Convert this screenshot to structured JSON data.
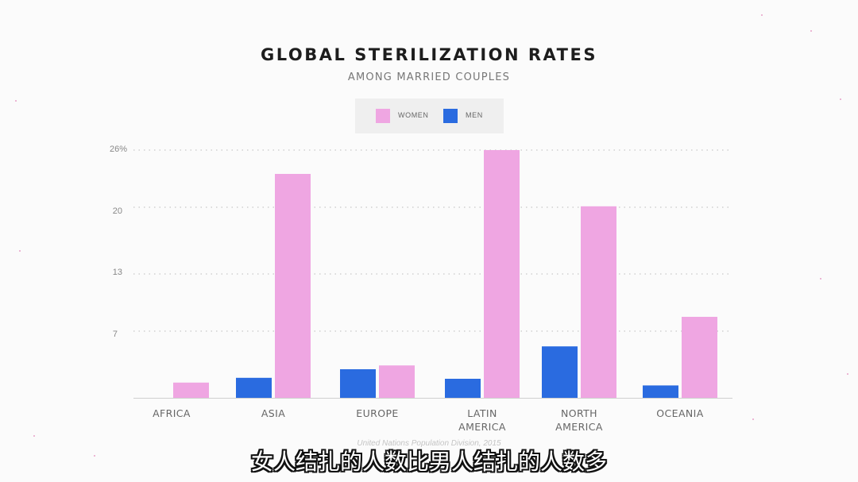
{
  "chart_data": {
    "type": "bar",
    "title": "GLOBAL STERILIZATION RATES",
    "subtitle": "AMONG MARRIED COUPLES",
    "categories": [
      "AFRICA",
      "ASIA",
      "EUROPE",
      "LATIN AMERICA",
      "NORTH AMERICA",
      "OCEANIA"
    ],
    "category_lines": [
      [
        "AFRICA"
      ],
      [
        "ASIA"
      ],
      [
        "EUROPE"
      ],
      [
        "LATIN",
        "AMERICA"
      ],
      [
        "NORTH",
        "AMERICA"
      ],
      [
        "OCEANIA"
      ]
    ],
    "series": [
      {
        "name": "MEN",
        "color": "#2a6be0",
        "values": [
          0,
          2.1,
          3.0,
          2.0,
          5.4,
          1.3
        ]
      },
      {
        "name": "WOMEN",
        "color": "#efa6e2",
        "values": [
          1.6,
          23.5,
          3.4,
          26.0,
          20.1,
          8.5
        ]
      }
    ],
    "y_ticks": [
      "26%",
      "20",
      "13",
      "7"
    ],
    "y_tick_values": [
      26,
      20,
      13,
      7
    ],
    "ylim": [
      0,
      26
    ],
    "grid": true,
    "legend_position": "top-center",
    "legend_order": [
      "WOMEN",
      "MEN"
    ],
    "source": "United Nations Population Division, 2015"
  },
  "caption": "女人结扎的人数比男人结扎的人数多"
}
